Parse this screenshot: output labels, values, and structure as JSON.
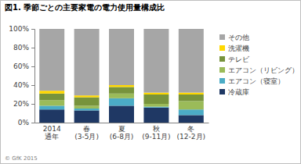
{
  "chart_data": {
    "type": "bar",
    "stacked": true,
    "grid": false,
    "legend": "right",
    "title": "図1. 季節ごとの主要家電の電力使用量構成比",
    "annotations": [
      "© GfK 2015"
    ],
    "categories": [
      "2014\n通年",
      "春\n(3-5月)",
      "夏\n(6-8月)",
      "秋\n(9-11月)",
      "冬\n(12-2月)"
    ],
    "ylim": [
      0,
      100
    ],
    "yticks": [
      {
        "value": 0,
        "label": "0%"
      },
      {
        "value": 20,
        "label": "20%"
      },
      {
        "value": 40,
        "label": "40%"
      },
      {
        "value": 60,
        "label": "60%"
      },
      {
        "value": 80,
        "label": "80%"
      },
      {
        "value": 100,
        "label": "100%"
      }
    ],
    "series": [
      {
        "name": "冷蔵庫",
        "color": "#1f3864",
        "values": [
          14,
          13,
          18,
          16,
          8
        ]
      },
      {
        "name": "エアコン（寝室）",
        "color": "#4bacc6",
        "values": [
          4,
          2,
          8,
          1,
          6
        ]
      },
      {
        "name": "エアコン（リビング）",
        "color": "#9bbb59",
        "values": [
          6,
          3,
          5,
          3,
          9
        ]
      },
      {
        "name": "テレビ",
        "color": "#77933c",
        "values": [
          7,
          9,
          7,
          10,
          7
        ]
      },
      {
        "name": "洗濯機",
        "color": "#ffd800",
        "values": [
          3,
          2,
          2,
          2,
          2
        ]
      },
      {
        "name": "その他",
        "color": "#a6a6a6",
        "values": [
          66,
          71,
          60,
          68,
          68
        ]
      }
    ]
  }
}
